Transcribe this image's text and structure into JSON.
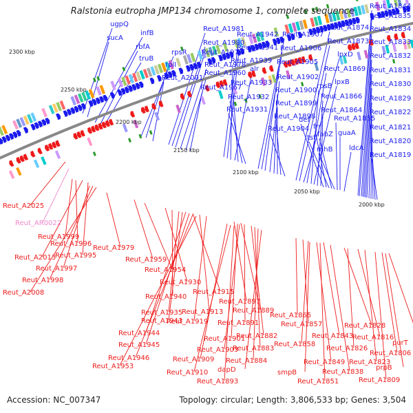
{
  "title": "Ralstonia eutropha JMP134 chromosome 1, complete sequence",
  "accession": "Accession: NC_007347",
  "summary": "Topology: circular; Length: 3,806,533 bp; Genes: 3,504",
  "colors": {
    "forward": "#1a1aee",
    "reverse": "#ee1a1a",
    "rna": "#ee88cc",
    "backbone": "#888888"
  },
  "scale_labels": [
    "2300 kbp",
    "2250 kbp",
    "2200 kbp",
    "2150 kbp",
    "2100 kbp",
    "2050 kbp",
    "2000 kbp"
  ],
  "top_labels": [
    "ugpQ",
    "sucA",
    "infB",
    "rbfA",
    "truB",
    "rpsR",
    "rplI",
    "Reut_A2001",
    "Reut_A1981",
    "Reut_A1980",
    "Reut_A1977",
    "Reut_A1978",
    "Reut_A1960",
    "Reut_A1967",
    "Reut_A1942",
    "Reut_A1941",
    "Reut_A1939",
    "alr",
    "Reut_A1933",
    "Reut_A1932",
    "Reut_A1931",
    "Reut_A1907",
    "Reut_A1906",
    "Reut_A1905",
    "Reut_A1902",
    "Reut_A1900",
    "Reut_A1899",
    "Reut_A1898",
    "Reut_A1904",
    "Reut_A1874",
    "Reut_A1873",
    "lpxD",
    "Reut_A1869",
    "rpsB",
    "lpxB",
    "Reut_A1866",
    "Reut_A1864",
    "def",
    "frr",
    "tsf",
    "fabZ",
    "rnhB",
    "Reut_A1855",
    "guaA",
    "ldcA",
    "Reut_A1844",
    "Reut_A1835",
    "Reut_A1834",
    "Reut_A1833",
    "Reut_A1832",
    "Reut_A1831",
    "Reut_A1830",
    "Reut_A1829",
    "Reut_A1822",
    "Reut_A1821",
    "Reut_A1820",
    "Reut_A1819"
  ],
  "bottom_labels": [
    "Reut_A2025",
    "Reut_AR0022",
    "Reut_A1999",
    "Reut_A1996",
    "Reut_A2013",
    "Reut_A1995",
    "Reut_A1997",
    "Reut_A1998",
    "Reut_A2008",
    "Reut_A1979",
    "Reut_A1959",
    "Reut_A1954",
    "Reut_A1930",
    "Reut_A1940",
    "Reut_A1915",
    "Reut_A1935",
    "Reut_A1913",
    "Reut_A1943",
    "Reut_A1919",
    "Reut_A1944",
    "Reut_A1945",
    "Reut_A1946",
    "Reut_A1953",
    "Reut_A1897",
    "Reut_A1889",
    "Reut_A1891",
    "Reut_A1882",
    "Reut_A1901",
    "Reut_A1903",
    "Reut_A1883",
    "Reut_A1909",
    "Reut_A1884",
    "Reut_A1910",
    "dapD",
    "Reut_A1893",
    "Reut_A1865",
    "Reut_A1857",
    "Reut_A1843",
    "Reut_A1858",
    "Reut_A1849",
    "smpB",
    "Reut_A1851",
    "Reut_A1838",
    "Reut_A1828",
    "Reut_A1816",
    "Reut_A1826",
    "Reut_A1823",
    "purT",
    "Reut_A1806",
    "prpB",
    "Reut_A1809"
  ]
}
